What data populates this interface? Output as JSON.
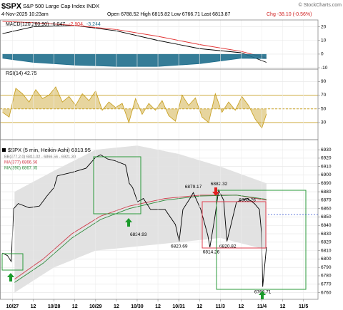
{
  "header": {
    "symbol": "$SPX",
    "name": "S&P 500 Large Cap Index INDX",
    "copyright": "© StockCharts.com",
    "date": "4-Nov-2025 10:23am",
    "quote": "Open 6788.52 High 6815.82 Low 6766.71 Last 6813.87",
    "change": "Chg -38.10 (-0.56%)"
  },
  "chart_data": [
    {
      "type": "line",
      "title": "MACD(120,260,90)",
      "xlim": [
        -0.3,
        7.35
      ],
      "ylim": [
        -11,
        25
      ],
      "yticks": [
        20,
        10,
        0,
        -10
      ],
      "grid": true,
      "x": [
        -0.24,
        0.5,
        1.5,
        2.5,
        3.5,
        4.5,
        5.5,
        6.11
      ],
      "series": [
        {
          "name": "-6.047,",
          "color": "#000000",
          "values": [
            15,
            20,
            21,
            17,
            10,
            4,
            1,
            -6.047
          ]
        },
        {
          "name": "-2.804,",
          "color": "#e03030",
          "values": [
            24,
            23,
            21,
            18,
            13,
            7,
            2,
            -2.804
          ]
        },
        {
          "name": "-3.244",
          "color": "#1f6e8c",
          "fill_to": 0,
          "values": [
            -3,
            -6,
            -8,
            -9,
            -9,
            -7,
            -3,
            -3.244
          ]
        }
      ]
    },
    {
      "type": "line",
      "title": "RSI(14) 42.75",
      "xlim": [
        -0.3,
        7.35
      ],
      "ylim": [
        5,
        108
      ],
      "yticks": [
        90,
        70,
        50,
        30
      ],
      "grid": true,
      "ref_lines": [
        {
          "value": 70
        },
        {
          "value": 50,
          "dashed": true
        },
        {
          "value": 30
        }
      ],
      "ref_color": "#c9a227",
      "x": [
        -0.24,
        -0.08,
        0.08,
        0.24,
        0.4,
        0.56,
        0.72,
        0.88,
        1.04,
        1.2,
        1.36,
        1.52,
        1.68,
        1.84,
        2.0,
        2.16,
        2.32,
        2.48,
        2.64,
        2.8,
        2.96,
        3.12,
        3.28,
        3.44,
        3.6,
        3.76,
        3.92,
        4.08,
        4.24,
        4.4,
        4.56,
        4.72,
        4.88,
        5.04,
        5.2,
        5.36,
        5.52,
        5.68,
        5.84,
        6.0,
        6.11
      ],
      "series": [
        {
          "color": "#c9a227",
          "fill_to": 50,
          "values": [
            45,
            38,
            80,
            72,
            60,
            78,
            65,
            70,
            82,
            60,
            68,
            55,
            72,
            62,
            76,
            48,
            60,
            52,
            58,
            30,
            65,
            42,
            58,
            48,
            62,
            40,
            32,
            70,
            55,
            66,
            38,
            30,
            72,
            45,
            60,
            48,
            68,
            55,
            35,
            22,
            42.75
          ]
        }
      ]
    },
    {
      "type": "line",
      "title": "$SPX (5 min, Heikin-Ashi) 6813.95",
      "xlim": [
        -0.3,
        7.35
      ],
      "ylim": [
        6752,
        6942
      ],
      "yticks": [
        6930,
        6920,
        6910,
        6900,
        6890,
        6880,
        6870,
        6860,
        6850,
        6840,
        6830,
        6820,
        6810,
        6800,
        6790,
        6780,
        6770,
        6760
      ],
      "grid": true,
      "xticks": [
        {
          "value": 0,
          "label": "10/27"
        },
        {
          "value": 0.5,
          "label": "12"
        },
        {
          "value": 1,
          "label": "10/28"
        },
        {
          "value": 1.5,
          "label": "12"
        },
        {
          "value": 2,
          "label": "10/29"
        },
        {
          "value": 2.5,
          "label": "12"
        },
        {
          "value": 3,
          "label": "10/30"
        },
        {
          "value": 3.5,
          "label": "12"
        },
        {
          "value": 4,
          "label": "10/31"
        },
        {
          "value": 4.5,
          "label": "12"
        },
        {
          "value": 5,
          "label": "11/3"
        },
        {
          "value": 5.5,
          "label": "12"
        },
        {
          "value": 6,
          "label": "11/4"
        },
        {
          "value": 6.5,
          "label": "12"
        },
        {
          "value": 7,
          "label": "11/5"
        }
      ],
      "band": {
        "name": "BB(377,2.0) 6811.02 - 6866.56 - 6921.30",
        "color": "#e2e2e2",
        "x": [
          0.05,
          1,
          2,
          3,
          4,
          5,
          6.11
        ],
        "upper": [
          6880,
          6905,
          6930,
          6935,
          6925,
          6910,
          6890
        ],
        "lower": [
          6760,
          6790,
          6810,
          6815,
          6820,
          6825,
          6811
        ]
      },
      "series": [
        {
          "name": "MA(377) 6866.56",
          "color": "#d03a4a",
          "x": [
            0.05,
            0.74,
            1.43,
            2.12,
            2.81,
            3.67,
            4.53,
            5.39,
            6.11
          ],
          "values": [
            6776,
            6800,
            6830,
            6851,
            6863,
            6872,
            6876,
            6876,
            6870
          ]
        },
        {
          "name": "MA(390) 6867.05",
          "color": "#2a8a3a",
          "x": [
            0.05,
            0.74,
            1.43,
            2.12,
            2.81,
            3.67,
            4.53,
            5.39,
            6.11
          ],
          "values": [
            6772,
            6795,
            6825,
            6847,
            6860,
            6870,
            6875,
            6876,
            6871
          ]
        },
        {
          "color": "#000000",
          "x": [
            -0.24,
            -0.12,
            -0.03,
            0.03,
            0.14,
            0.4,
            0.65,
            0.83,
            1.0,
            1.08,
            1.43,
            1.77,
            2.0,
            2.12,
            2.29,
            2.46,
            2.72,
            2.81,
            2.89,
            3.01,
            3.15,
            3.32,
            3.67,
            3.92,
            4.01,
            4.1,
            4.27,
            4.35,
            4.53,
            4.7,
            4.75,
            4.87,
            4.96,
            5.08,
            5.16,
            5.39,
            5.65,
            5.82,
            5.94,
            5.99,
            6.02,
            6.11
          ],
          "values": [
            6807,
            6804,
            6797,
            6860,
            6866,
            6861,
            6863,
            6875,
            6885,
            6899,
            6903,
            6908,
            6921,
            6924,
            6919,
            6917,
            6912,
            6890,
            6885,
            6868,
            6872,
            6859,
            6859,
            6841,
            6821,
            6859,
            6872,
            6879,
            6859,
            6828,
            6814,
            6850,
            6882,
            6870,
            6821,
            6868,
            6872,
            6866,
            6859,
            6832,
            6767,
            6814
          ]
        }
      ],
      "annotations": [
        {
          "x": 4.35,
          "value": 6879.17,
          "pos": "above"
        },
        {
          "x": 4.97,
          "value": 6882.32,
          "pos": "above"
        },
        {
          "x": 5.65,
          "value": 6863.26,
          "pos": "above"
        },
        {
          "x": 3.03,
          "value": 6834.93,
          "pos": "below"
        },
        {
          "x": 4.01,
          "value": 6820.69,
          "pos": "below"
        },
        {
          "x": 4.78,
          "value": 6814.26,
          "pos": "below"
        },
        {
          "x": 5.18,
          "value": 6820.82,
          "pos": "below"
        },
        {
          "x": 6.02,
          "value": 6766.71,
          "pos": "below"
        }
      ]
    }
  ]
}
